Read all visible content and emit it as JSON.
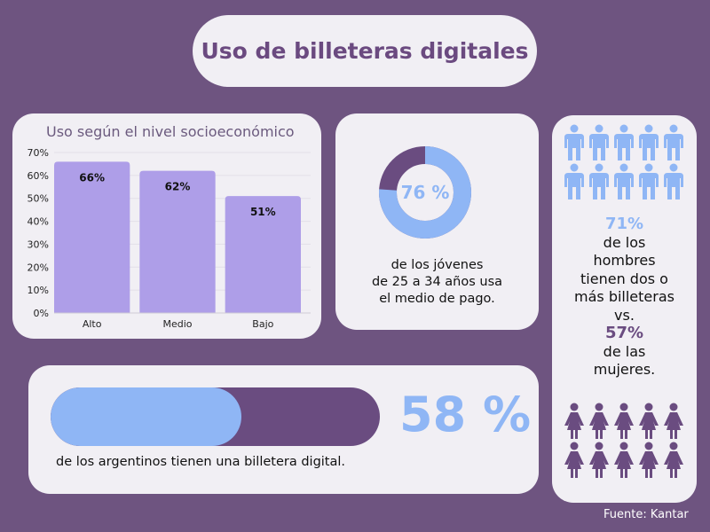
{
  "title": "Uso de billeteras digitales",
  "colors": {
    "background": "#6e5480",
    "card": "#f1eff4",
    "bar": "#ae9ee8",
    "blue": "#8fb6f5",
    "purple": "#6a4c80"
  },
  "chart_data": {
    "type": "bar",
    "title": "Uso según el nivel socioeconómico",
    "categories": [
      "Alto",
      "Medio",
      "Bajo"
    ],
    "values": [
      66,
      62,
      51
    ],
    "data_labels": [
      "66%",
      "62%",
      "51%"
    ],
    "yticks": [
      "0%",
      "10%",
      "20%",
      "30%",
      "40%",
      "50%",
      "60%",
      "70%"
    ],
    "ylim": [
      0,
      70
    ],
    "xlabel": "",
    "ylabel": "",
    "grid": true
  },
  "donut": {
    "value": 76,
    "label": "76 %",
    "caption": [
      "de los jóvenes",
      "de 25 a 34 años usa",
      "el medio de pago."
    ]
  },
  "progress": {
    "value": 58,
    "label": "58 %",
    "caption": "de los argentinos tienen una billetera digital."
  },
  "gender": {
    "men_pct": "71%",
    "men_text": [
      "de los",
      "hombres",
      "tienen dos o",
      "más billeteras"
    ],
    "vs": "vs.",
    "women_pct": "57%",
    "women_text": [
      "de las",
      "mujeres."
    ],
    "men_icon": "man-icon",
    "women_icon": "woman-icon"
  },
  "source": "Fuente: Kantar"
}
